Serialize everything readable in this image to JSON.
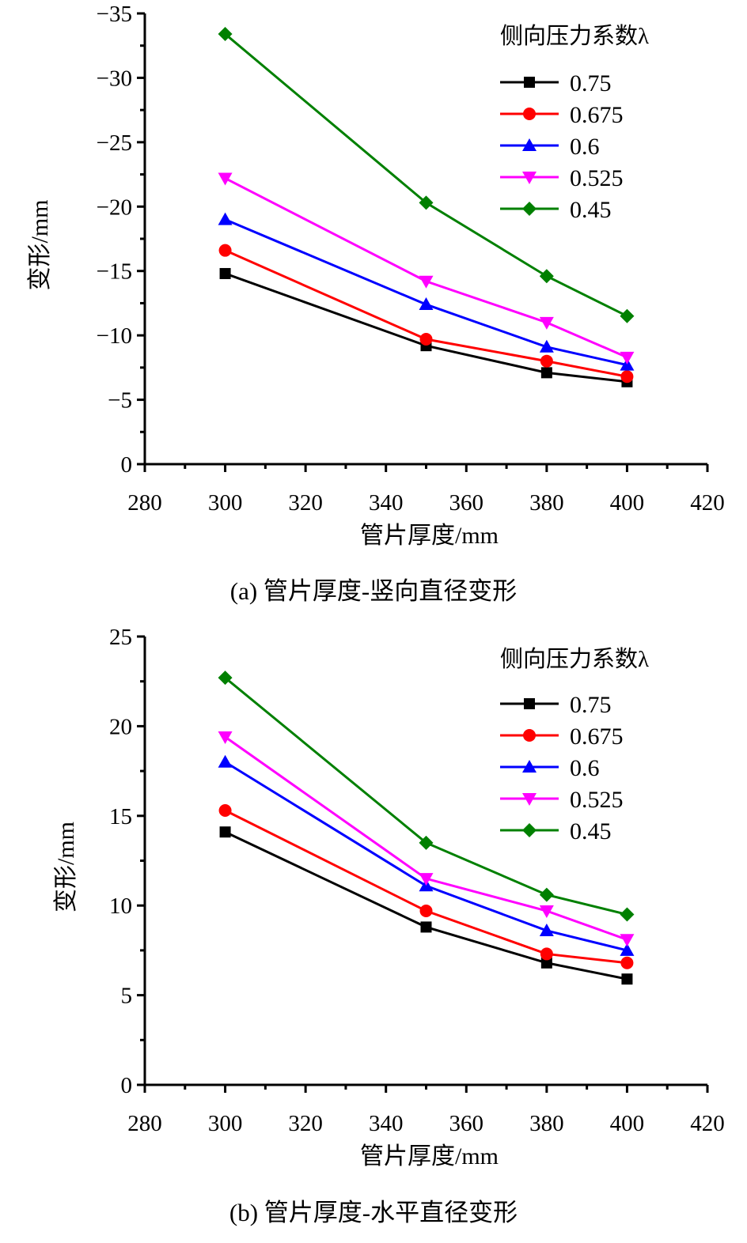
{
  "chart_data": [
    {
      "id": "a",
      "type": "line",
      "title": "",
      "caption": "(a)  管片厚度-竖向直径变形",
      "xlabel": "管片厚度/mm",
      "ylabel": "变形/mm",
      "xlim": [
        280,
        420
      ],
      "ylim": [
        0,
        -35
      ],
      "y_inverted": true,
      "xticks": [
        280,
        300,
        320,
        340,
        360,
        380,
        400,
        420
      ],
      "xtick_labels": [
        "280",
        "300",
        "320",
        "340",
        "360",
        "380",
        "400",
        "420"
      ],
      "yticks": [
        0,
        -5,
        -10,
        -15,
        -20,
        -25,
        -30,
        -35
      ],
      "ytick_labels": [
        "0",
        "−5",
        "−10",
        "−15",
        "−20",
        "−25",
        "−30",
        "−35"
      ],
      "grid": false,
      "legend": {
        "title": "侧向压力系数λ",
        "position": "top-right"
      },
      "x": [
        300,
        350,
        380,
        400
      ],
      "series": [
        {
          "name": "0.75",
          "color": "#000000",
          "marker": "square",
          "values": [
            -14.8,
            -9.2,
            -7.1,
            -6.4
          ]
        },
        {
          "name": "0.675",
          "color": "#ff0000",
          "marker": "circle",
          "values": [
            -16.6,
            -9.7,
            -8.0,
            -6.8
          ]
        },
        {
          "name": "0.6",
          "color": "#0000ff",
          "marker": "triangle-up",
          "values": [
            -19.0,
            -12.4,
            -9.1,
            -7.7
          ]
        },
        {
          "name": "0.525",
          "color": "#ff00ff",
          "marker": "triangle-down",
          "values": [
            -22.2,
            -14.2,
            -11.0,
            -8.3
          ]
        },
        {
          "name": "0.45",
          "color": "#008000",
          "marker": "diamond",
          "values": [
            -33.4,
            -20.3,
            -14.6,
            -11.5
          ]
        }
      ]
    },
    {
      "id": "b",
      "type": "line",
      "title": "",
      "caption": "(b)  管片厚度-水平直径变形",
      "xlabel": "管片厚度/mm",
      "ylabel": "变形/mm",
      "xlim": [
        280,
        420
      ],
      "ylim": [
        0,
        25
      ],
      "y_inverted": false,
      "xticks": [
        280,
        300,
        320,
        340,
        360,
        380,
        400,
        420
      ],
      "xtick_labels": [
        "280",
        "300",
        "320",
        "340",
        "360",
        "380",
        "400",
        "420"
      ],
      "yticks": [
        0,
        5,
        10,
        15,
        20,
        25
      ],
      "ytick_labels": [
        "0",
        "5",
        "10",
        "15",
        "20",
        "25"
      ],
      "grid": false,
      "legend": {
        "title": "侧向压力系数λ",
        "position": "top-right"
      },
      "x": [
        300,
        350,
        380,
        400
      ],
      "series": [
        {
          "name": "0.75",
          "color": "#000000",
          "marker": "square",
          "values": [
            14.1,
            8.8,
            6.8,
            5.9
          ]
        },
        {
          "name": "0.675",
          "color": "#ff0000",
          "marker": "circle",
          "values": [
            15.3,
            9.7,
            7.3,
            6.8
          ]
        },
        {
          "name": "0.6",
          "color": "#0000ff",
          "marker": "triangle-up",
          "values": [
            18.0,
            11.1,
            8.6,
            7.5
          ]
        },
        {
          "name": "0.525",
          "color": "#ff00ff",
          "marker": "triangle-down",
          "values": [
            19.4,
            11.5,
            9.7,
            8.1
          ]
        },
        {
          "name": "0.45",
          "color": "#008000",
          "marker": "diamond",
          "values": [
            22.7,
            13.5,
            10.6,
            9.5
          ]
        }
      ]
    }
  ]
}
